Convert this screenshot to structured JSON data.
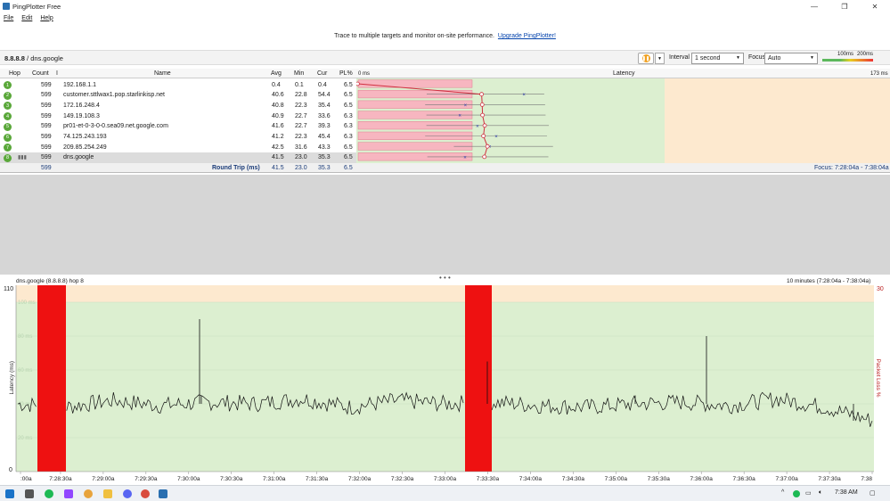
{
  "window": {
    "title": "PingPlotter Free",
    "controls": [
      "—",
      "❐",
      "✕"
    ]
  },
  "menu": [
    "File",
    "Edit",
    "Help"
  ],
  "promo": {
    "text": "Trace to multiple targets and monitor on-site performance.",
    "link": "Upgrade PingPlotter!"
  },
  "toolbar": {
    "target_ip": "8.8.8.8",
    "target_sep": " / ",
    "target_host": "dns.google",
    "interval_label": "Interval",
    "interval_value": "1 second",
    "focus_label": "Focus",
    "focus_value": "Auto",
    "legend_100": "100ms",
    "legend_200": "200ms"
  },
  "table": {
    "headers": [
      "Hop",
      "Count",
      "I",
      "Name",
      "Avg",
      "Min",
      "Cur",
      "PL%",
      "Latency"
    ],
    "latency_min_label": "0 ms",
    "latency_max_label": "173 ms",
    "rows": [
      {
        "hop": "1",
        "count": "599",
        "name": "192.168.1.1",
        "avg": "0.4",
        "min": "0.1",
        "cur": "0.4",
        "pl": "6.5"
      },
      {
        "hop": "2",
        "count": "599",
        "name": "customer.sttlwax1.pop.starlinkisp.net",
        "avg": "40.6",
        "min": "22.8",
        "cur": "54.4",
        "pl": "6.5"
      },
      {
        "hop": "3",
        "count": "599",
        "name": "172.16.248.4",
        "avg": "40.8",
        "min": "22.3",
        "cur": "35.4",
        "pl": "6.5"
      },
      {
        "hop": "4",
        "count": "599",
        "name": "149.19.108.3",
        "avg": "40.9",
        "min": "22.7",
        "cur": "33.6",
        "pl": "6.3"
      },
      {
        "hop": "5",
        "count": "599",
        "name": "pr01-et-0-3-0-0.sea09.net.google.com",
        "avg": "41.6",
        "min": "22.7",
        "cur": "39.3",
        "pl": "6.3"
      },
      {
        "hop": "6",
        "count": "599",
        "name": "74.125.243.193",
        "avg": "41.2",
        "min": "22.3",
        "cur": "45.4",
        "pl": "6.3"
      },
      {
        "hop": "7",
        "count": "599",
        "name": "209.85.254.249",
        "avg": "42.5",
        "min": "31.6",
        "cur": "43.3",
        "pl": "6.5"
      },
      {
        "hop": "8",
        "count": "599",
        "name": "dns.google",
        "avg": "41.5",
        "min": "23.0",
        "cur": "35.3",
        "pl": "6.5"
      }
    ],
    "summary": {
      "count": "599",
      "label": "Round Trip (ms)",
      "avg": "41.5",
      "min": "23.0",
      "cur": "35.3",
      "pl": "6.5",
      "focus": "Focus: 7:28:04a - 7:38:04a"
    }
  },
  "timeline": {
    "title": "dns.google (8.8.8.8) hop 8",
    "range": "10 minutes (7:28:04a - 7:38:04a)",
    "y_max_label": "110",
    "y_min_label": "0",
    "pl_max_label": "30",
    "y_axis_label": "Latency (ms)",
    "pl_axis_label": "Packet Loss %",
    "x_ticks": [
      ":00a",
      "7:28:30a",
      "7:29:00a",
      "7:29:30a",
      "7:30:00a",
      "7:30:30a",
      "7:31:00a",
      "7:31:30a",
      "7:32:00a",
      "7:32:30a",
      "7:33:00a",
      "7:33:30a",
      "7:34:00a",
      "7:34:30a",
      "7:35:00a",
      "7:35:30a",
      "7:36:00a",
      "7:36:30a",
      "7:37:00a",
      "7:37:30a",
      "7:38"
    ],
    "grid_labels": [
      "100 ms",
      "80 ms",
      "60 ms",
      "40 ms",
      "20 ms"
    ]
  },
  "chart_data": {
    "type": "line",
    "title": "dns.google (8.8.8.8) hop 8",
    "ylabel": "Latency (ms)",
    "ylim": [
      0,
      110
    ],
    "x": [
      "7:28:30a",
      "7:29:00a",
      "7:29:30a",
      "7:30:00a",
      "7:30:30a",
      "7:31:00a",
      "7:31:30a",
      "7:32:00a",
      "7:32:30a",
      "7:33:00a",
      "7:33:30a",
      "7:34:00a",
      "7:34:30a",
      "7:35:00a",
      "7:35:30a",
      "7:36:00a",
      "7:36:30a",
      "7:37:00a",
      "7:37:30a"
    ],
    "series": [
      {
        "values": [
          40,
          38,
          42,
          39,
          41,
          40,
          43,
          38,
          42,
          40,
          41,
          39,
          38,
          40,
          41,
          39,
          43,
          38,
          30
        ]
      }
    ],
    "loss_bands": [
      [
        "7:28:09a",
        "7:28:29a"
      ],
      [
        "7:33:06a",
        "7:33:25a"
      ]
    ]
  },
  "taskbar": {
    "time": "7:38 AM"
  }
}
